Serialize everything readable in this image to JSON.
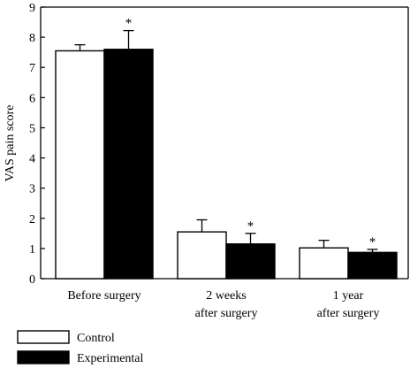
{
  "chart_data": {
    "type": "bar",
    "ylabel": "VAS pain score",
    "ylim": [
      0,
      9
    ],
    "yticks": [
      "0",
      "1",
      "2",
      "3",
      "4",
      "5",
      "6",
      "7",
      "8",
      "9"
    ],
    "categories": [
      [
        "Before surgery"
      ],
      [
        "2 weeks",
        "after surgery"
      ],
      [
        "1 year",
        "after surgery"
      ]
    ],
    "series": [
      {
        "name": "Control",
        "color": "#ffffff",
        "values": [
          7.55,
          1.55,
          1.02
        ],
        "errors": [
          0.2,
          0.4,
          0.25
        ]
      },
      {
        "name": "Experimental",
        "color": "#000000",
        "values": [
          7.6,
          1.15,
          0.87
        ],
        "errors": [
          0.62,
          0.35,
          0.1
        ]
      }
    ],
    "significance": [
      {
        "series": "Experimental",
        "category_index": 0,
        "label": "*"
      },
      {
        "series": "Experimental",
        "category_index": 1,
        "label": "*"
      },
      {
        "series": "Experimental",
        "category_index": 2,
        "label": "*"
      }
    ],
    "legend_position": "bottom-left"
  }
}
